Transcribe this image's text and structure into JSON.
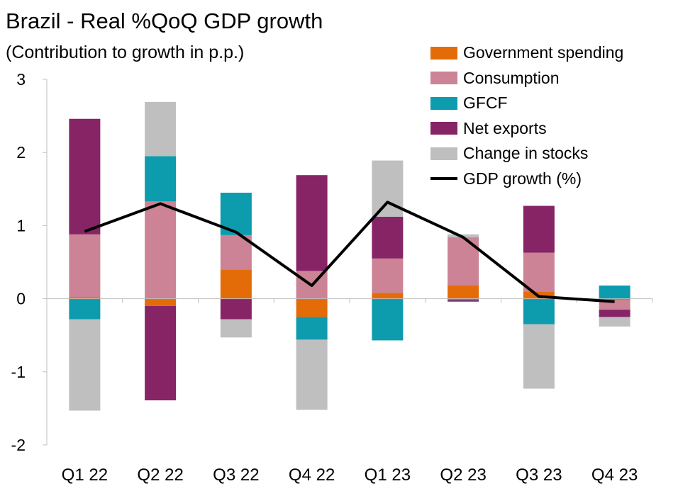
{
  "title": "Brazil - Real %QoQ GDP growth",
  "subtitle": "(Contribution to growth in p.p.)",
  "chart_data": {
    "type": "bar",
    "stacked": true,
    "categories": [
      "Q1 22",
      "Q2 22",
      "Q3 22",
      "Q4 22",
      "Q1 23",
      "Q2 23",
      "Q3 23",
      "Q4 23"
    ],
    "ylim": [
      -2,
      3
    ],
    "yticks": [
      "3",
      "2",
      "1",
      "0",
      "-1",
      "-2"
    ],
    "ytick_values": [
      3,
      2,
      1,
      0,
      -1,
      -2
    ],
    "grid": false,
    "legend_position": "top-right",
    "series": [
      {
        "name": "Government spending",
        "color": "#E36C09",
        "values": [
          0.02,
          -0.1,
          0.4,
          -0.25,
          0.08,
          0.18,
          0.1,
          -0.02
        ]
      },
      {
        "name": "Consumption",
        "color": "#CB8395",
        "values": [
          0.86,
          1.33,
          0.47,
          0.38,
          0.47,
          0.66,
          0.53,
          -0.13
        ]
      },
      {
        "name": "GFCF",
        "color": "#0D9BAE",
        "values": [
          -0.28,
          0.62,
          0.58,
          -0.31,
          -0.57,
          -0.02,
          -0.35,
          0.18
        ]
      },
      {
        "name": "Net exports",
        "color": "#862466",
        "values": [
          1.58,
          -1.29,
          -0.28,
          1.31,
          0.57,
          -0.02,
          0.64,
          -0.1
        ]
      },
      {
        "name": "Change in stocks",
        "color": "#BFBFBF",
        "values": [
          -1.25,
          0.74,
          -0.25,
          -0.96,
          0.77,
          0.04,
          -0.88,
          -0.13
        ]
      }
    ],
    "line": {
      "name": "GDP growth (%)",
      "color": "#000000",
      "values": [
        0.92,
        1.3,
        0.91,
        0.18,
        1.32,
        0.84,
        0.03,
        -0.04
      ]
    }
  }
}
